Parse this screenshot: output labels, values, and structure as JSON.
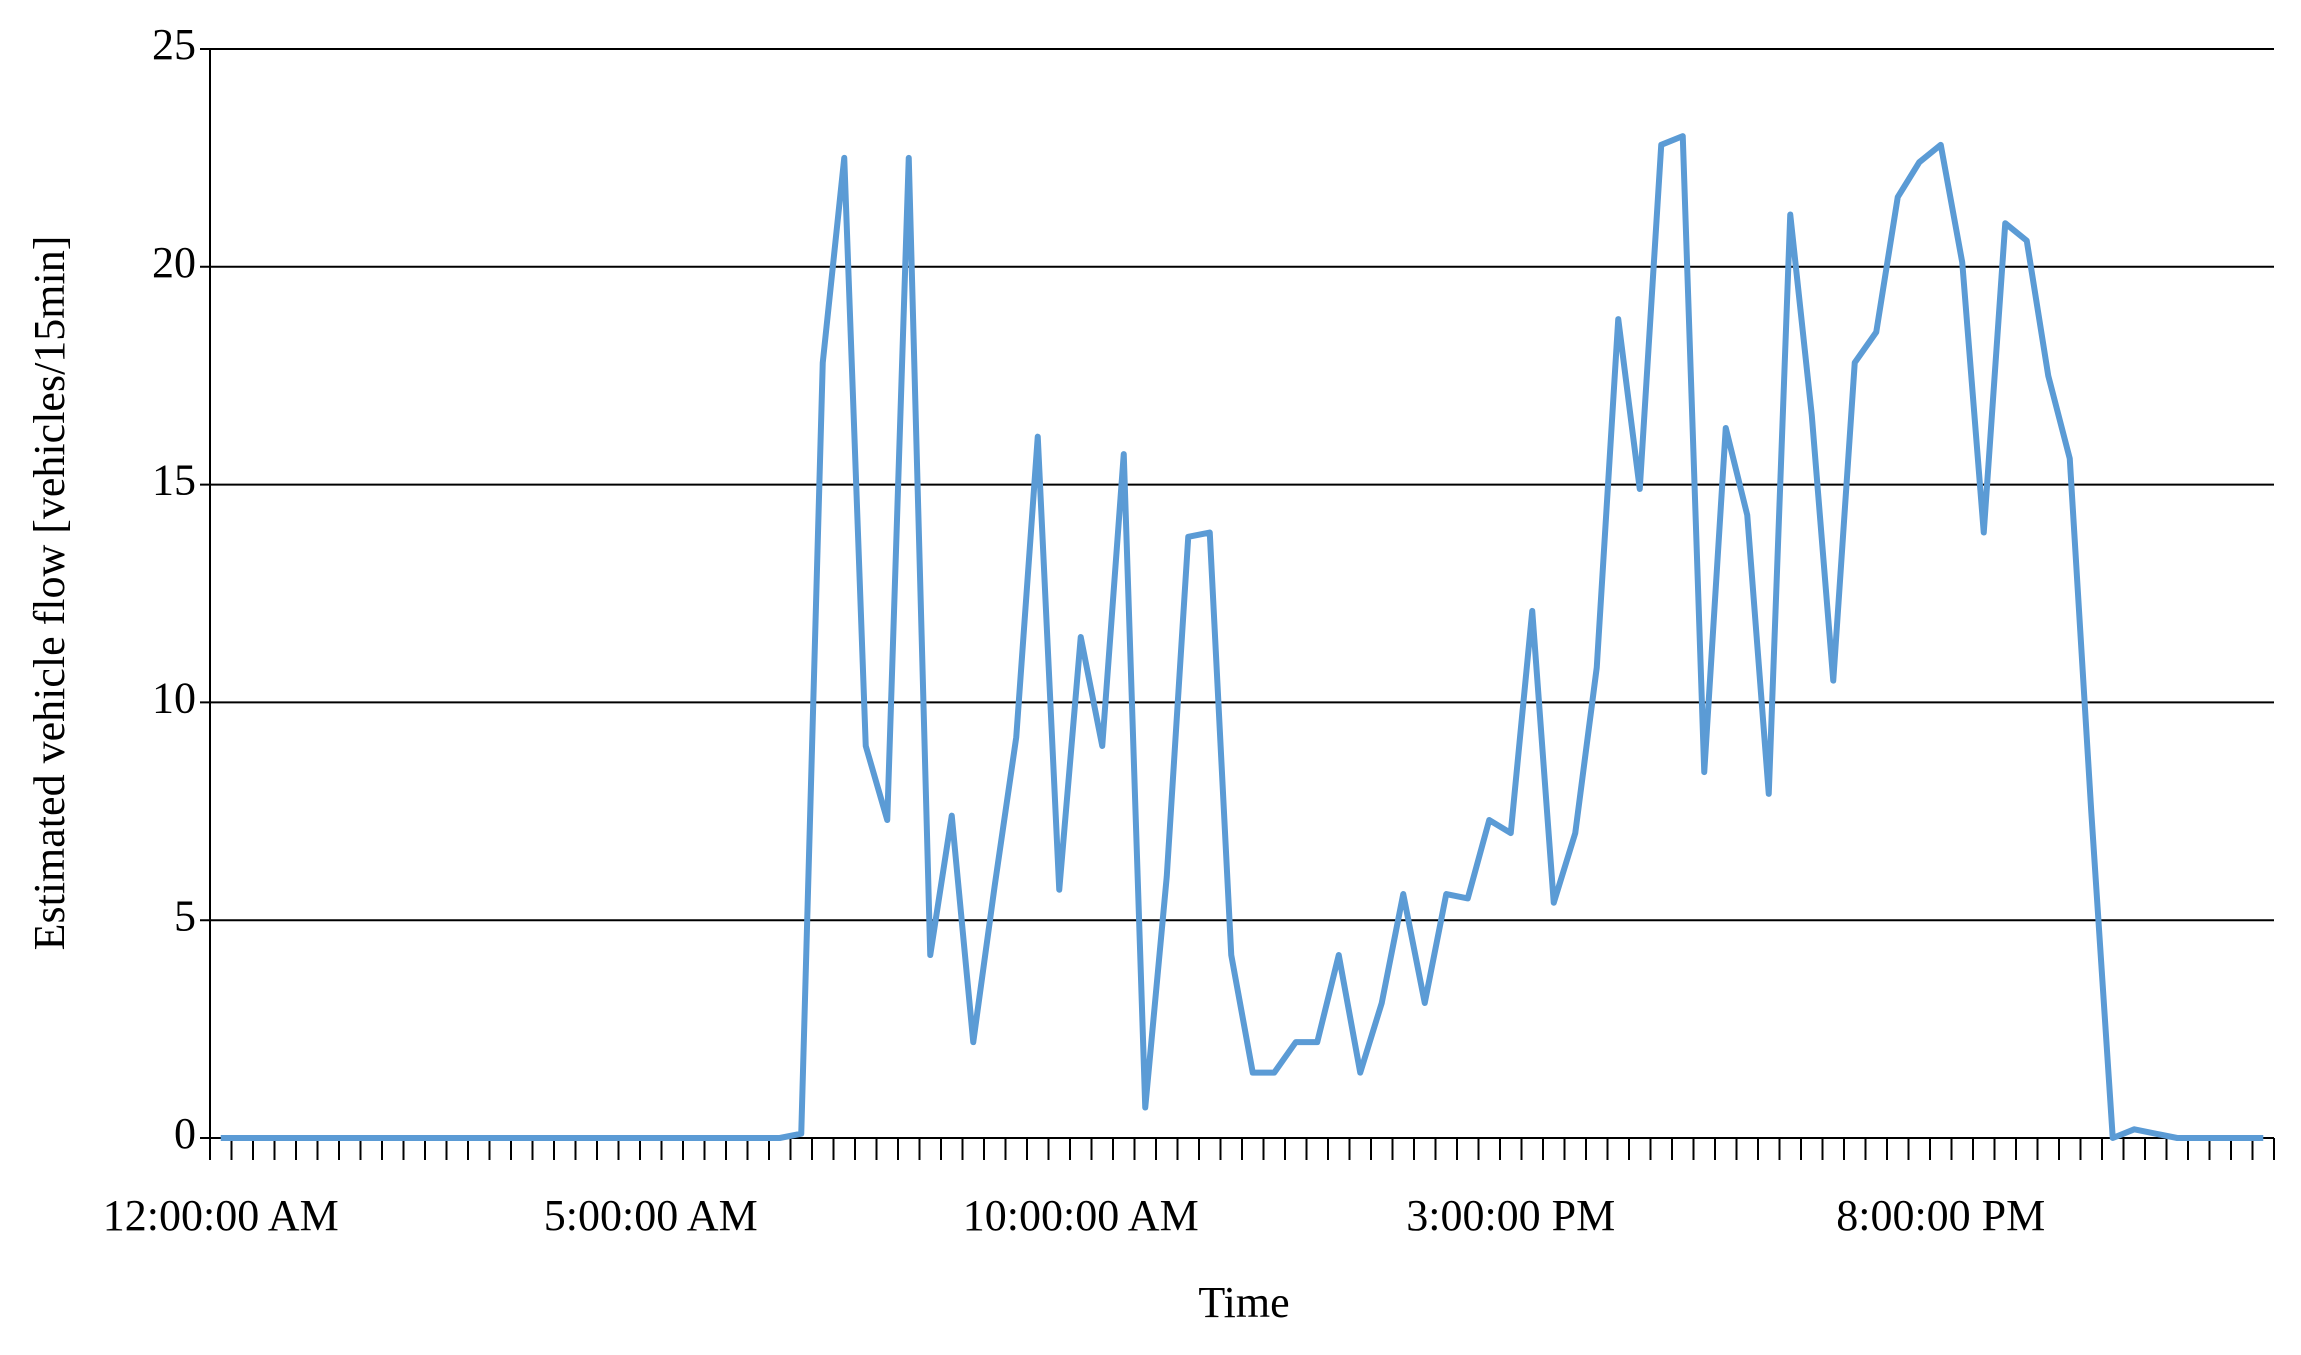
{
  "chart_data": {
    "type": "line",
    "x_label": "Time",
    "y_label": "Estimated vehicle flow [vehicles/15min]",
    "categories": [
      "12:00:00 AM",
      null,
      null,
      null,
      null,
      null,
      null,
      null,
      null,
      null,
      null,
      null,
      null,
      null,
      null,
      null,
      null,
      null,
      null,
      null,
      "5:00:00 AM",
      null,
      null,
      null,
      null,
      null,
      null,
      null,
      null,
      null,
      null,
      null,
      null,
      null,
      null,
      null,
      null,
      null,
      null,
      null,
      "10:00:00 AM",
      null,
      null,
      null,
      null,
      null,
      null,
      null,
      null,
      null,
      null,
      null,
      null,
      null,
      null,
      null,
      null,
      null,
      null,
      null,
      "3:00:00 PM",
      null,
      null,
      null,
      null,
      null,
      null,
      null,
      null,
      null,
      null,
      null,
      null,
      null,
      null,
      null,
      null,
      null,
      null,
      null,
      "8:00:00 PM",
      null,
      null,
      null,
      null,
      null,
      null,
      null,
      null,
      null,
      null,
      null,
      null,
      null,
      null,
      null
    ],
    "values": [
      0,
      0,
      0,
      0,
      0,
      0,
      0,
      0,
      0,
      0,
      0,
      0,
      0,
      0,
      0,
      0,
      0,
      0,
      0,
      0,
      0,
      0,
      0,
      0,
      0,
      0,
      0,
      0.1,
      17.8,
      22.5,
      9.0,
      7.3,
      22.5,
      4.2,
      7.4,
      2.2,
      5.8,
      9.2,
      16.1,
      5.7,
      11.5,
      9.0,
      15.7,
      0.7,
      6.0,
      13.8,
      13.9,
      4.2,
      1.5,
      1.5,
      2.2,
      2.2,
      4.2,
      1.5,
      3.1,
      5.6,
      3.1,
      5.6,
      5.5,
      7.3,
      7.0,
      12.1,
      5.4,
      7.0,
      10.8,
      18.8,
      14.9,
      22.8,
      23.0,
      8.4,
      16.3,
      14.3,
      7.9,
      21.2,
      16.6,
      10.5,
      17.8,
      18.5,
      21.6,
      22.4,
      22.8,
      20.1,
      13.9,
      21.0,
      20.6,
      17.5,
      15.6,
      7.5,
      0,
      0.2,
      0.1,
      0,
      0,
      0,
      0,
      0
    ],
    "color": "#5b9bd5",
    "ylim": [
      0,
      25
    ],
    "yticks": [
      0,
      5,
      10,
      15,
      20,
      25
    ],
    "grid": true
  }
}
